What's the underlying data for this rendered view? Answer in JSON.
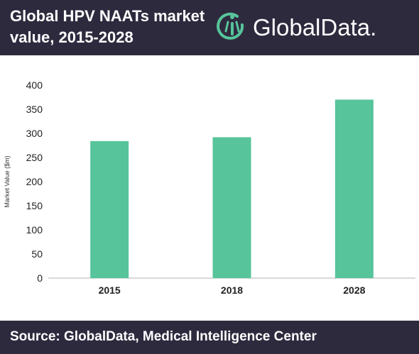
{
  "header": {
    "title": "Global HPV NAATs market value, 2015-2028",
    "logo_text": "GlobalData."
  },
  "footer": {
    "source": "Source:  GlobalData, Medical Intelligence Center"
  },
  "colors": {
    "band": "#2e2a3e",
    "bar": "#57c49b",
    "logo_accent": "#57c49b"
  },
  "chart_data": {
    "type": "bar",
    "title": "Global HPV NAATs market value, 2015-2028",
    "categories": [
      "2015",
      "2018",
      "2028"
    ],
    "values": [
      284,
      292,
      370
    ],
    "xlabel": "",
    "ylabel": "Market Value ($m)",
    "ylim": [
      0,
      400
    ],
    "yticks": [
      0,
      50,
      100,
      150,
      200,
      250,
      300,
      350,
      400
    ],
    "grid": false,
    "legend": "none"
  }
}
